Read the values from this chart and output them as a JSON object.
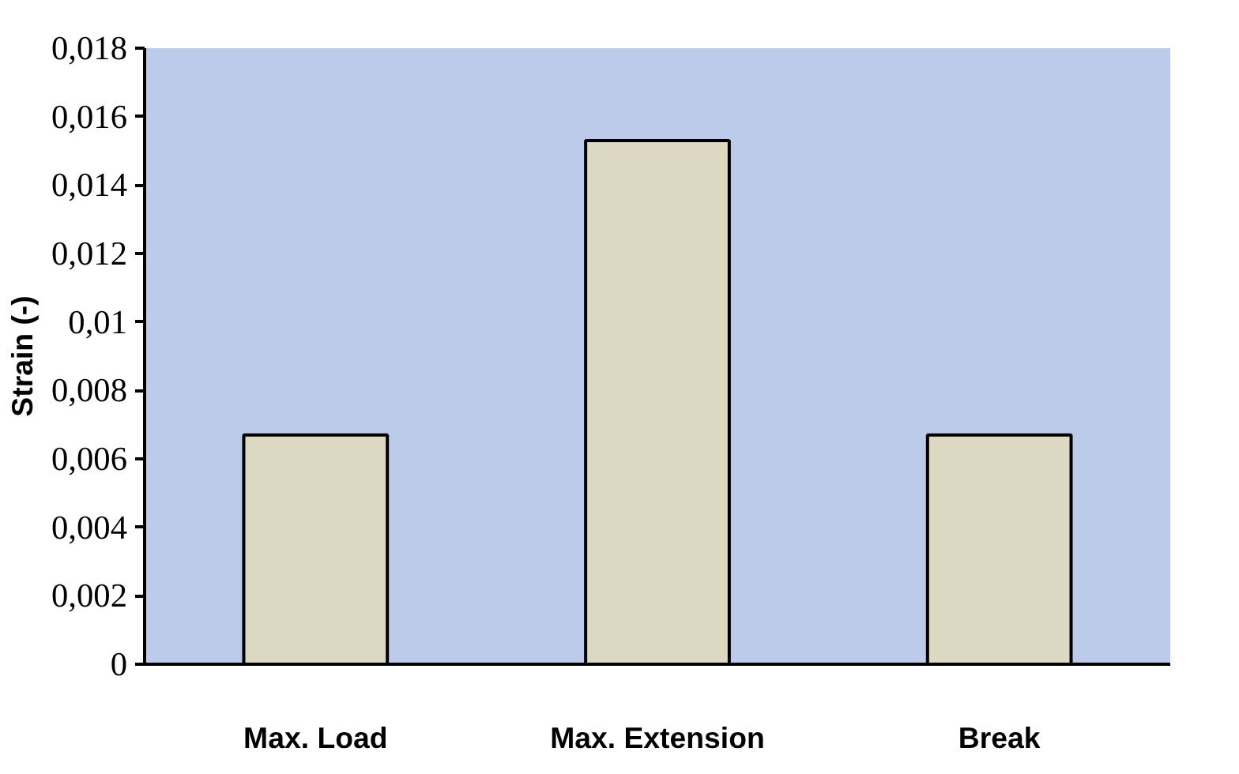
{
  "chart_data": {
    "type": "bar",
    "ylabel": "Strain (-)",
    "categories": [
      "Max. Load",
      "Max. Extension",
      "Break"
    ],
    "values": [
      0.0067,
      0.0153,
      0.0067
    ],
    "color": "#ddd8c2",
    "ylim": [
      0,
      0.018
    ],
    "yticks": [
      0,
      {
        "value": 0.002,
        "label": "0,002"
      },
      {
        "value": 0.004,
        "label": "0,004"
      },
      {
        "value": 0.006,
        "label": "0,006"
      },
      {
        "value": 0.008,
        "label": "0,008"
      },
      {
        "value": 0.01,
        "label": "0,01"
      },
      {
        "value": 0.012,
        "label": "0,012"
      },
      {
        "value": 0.014,
        "label": "0,014"
      },
      {
        "value": 0.016,
        "label": "0,016"
      },
      {
        "value": 0.018,
        "label": "0,018"
      }
    ],
    "grid": false
  }
}
